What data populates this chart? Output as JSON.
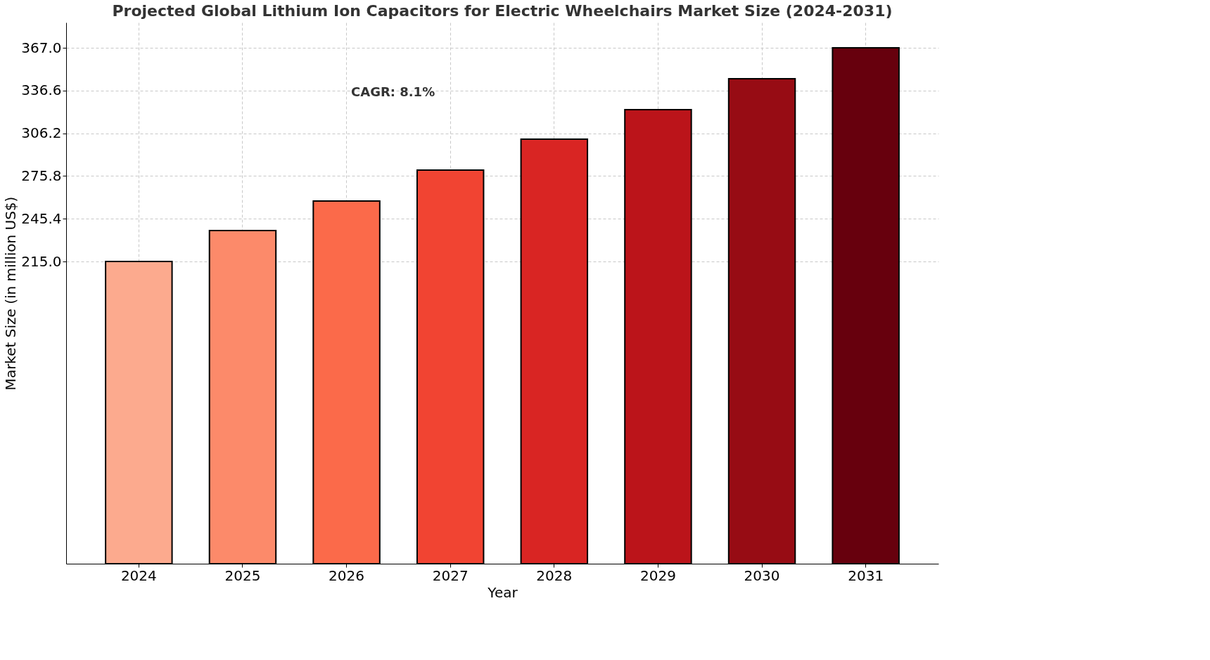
{
  "chart_data": {
    "type": "bar",
    "title": "Projected Global Lithium Ion Capacitors for Electric Wheelchairs Market Size (2024-2031)",
    "xlabel": "Year",
    "ylabel": "Market Size (in million US$)",
    "categories": [
      "2024",
      "2025",
      "2026",
      "2027",
      "2028",
      "2029",
      "2030",
      "2031"
    ],
    "values": [
      215,
      237,
      258,
      280,
      302,
      323,
      345,
      367
    ],
    "colors": [
      "#fcaa8e",
      "#fc8a6a",
      "#fb6a4a",
      "#f14432",
      "#d92523",
      "#bb141a",
      "#970c14",
      "#67000d"
    ],
    "ylim": [
      0,
      385
    ],
    "yticks": [
      {
        "value": 215,
        "label": "215.0"
      },
      {
        "value": 245.4,
        "label": "245.4"
      },
      {
        "value": 275.8,
        "label": "275.8"
      },
      {
        "value": 306.2,
        "label": "306.2"
      },
      {
        "value": 336.6,
        "label": "336.6"
      },
      {
        "value": 367,
        "label": "367.0"
      }
    ],
    "grid": true,
    "annotations": [
      "CAGR: 8.1%"
    ]
  }
}
